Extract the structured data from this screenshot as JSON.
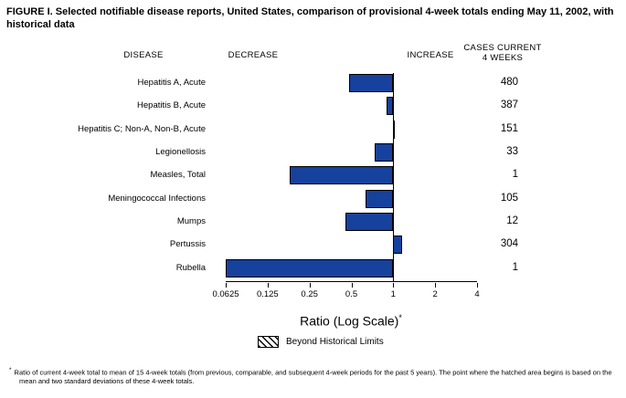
{
  "title": "FIGURE I. Selected notifiable disease reports, United States, comparison of provisional 4-week totals ending May 11, 2002, with historical data",
  "headers": {
    "disease": "DISEASE",
    "decrease": "DECREASE",
    "increase": "INCREASE",
    "cases_line1": "CASES CURRENT",
    "cases_line2": "4 WEEKS"
  },
  "chart_data": {
    "type": "bar",
    "orientation": "horizontal",
    "scale": "log2",
    "baseline": 1,
    "axis_range": [
      0.0625,
      4
    ],
    "x_ticks": [
      0.0625,
      0.125,
      0.25,
      0.5,
      1,
      2,
      4
    ],
    "x_tick_labels": [
      "0.0625",
      "0.125",
      "0.25",
      "0.5",
      "1",
      "2",
      "4"
    ],
    "xlabel": "Ratio (Log Scale)",
    "xlabel_marker": "*",
    "categories": [
      "Hepatitis A, Acute",
      "Hepatitis B, Acute",
      "Hepatitis C; Non-A, Non-B, Acute",
      "Legionellosis",
      "Measles, Total",
      "Meningococcal Infections",
      "Mumps",
      "Pertussis",
      "Rubella"
    ],
    "ratios": [
      0.48,
      0.9,
      1.03,
      0.73,
      0.18,
      0.63,
      0.45,
      1.15,
      0.0625
    ],
    "cases_current_4_weeks": [
      "480",
      "387",
      "151",
      "33",
      "1",
      "105",
      "12",
      "304",
      "1"
    ],
    "bar_color": "#16419C",
    "legend": {
      "label": "Beyond Historical Limits",
      "swatch": "diagonal-hatch"
    },
    "grid": "off"
  },
  "footnote_marker": "*",
  "footnote": "Ratio of current 4-week total to mean of 15 4-week totals (from previous, comparable, and subsequent 4-week periods for the past 5 years). The point where the hatched area begins is based on the mean and two standard deviations of these 4-week totals."
}
